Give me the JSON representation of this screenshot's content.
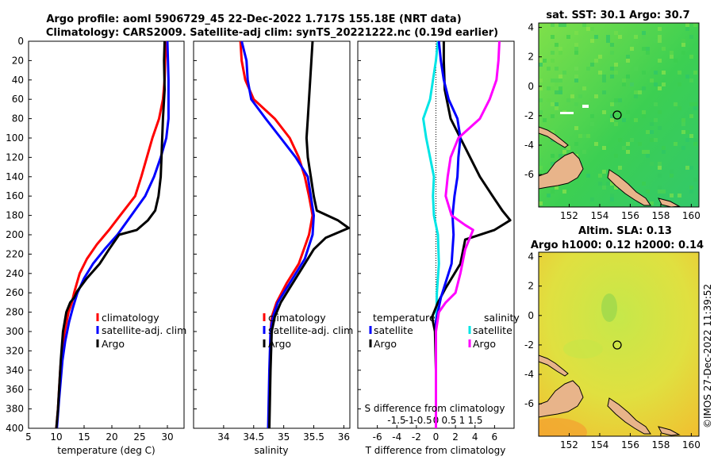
{
  "title": {
    "line1": "Argo profile: aoml 5906729_45 22-Dec-2022 1.717S 155.18E (NRT data)",
    "line2": "Climatology: CARS2009. Satellite-adj clim: synTS_20221222.nc (0.19d earlier)"
  },
  "credit": "©IMOS 27-Dec-2022 11:39:52",
  "colors": {
    "clim": "#ff0000",
    "sat": "#0000ff",
    "argo": "#000000",
    "tsat": "#00e5e5",
    "sargo": "#ff00ff",
    "coast": "#000000",
    "land": "#e8b48a"
  },
  "chart_data": [
    {
      "type": "line",
      "name": "temperature",
      "xlabel": "temperature (deg C)",
      "xlim": [
        5,
        33
      ],
      "ylim": [
        0,
        400
      ],
      "xticks": [
        "5",
        "10",
        "15",
        "20",
        "25",
        "30"
      ],
      "xtick_values": [
        5,
        10,
        15,
        20,
        25,
        30
      ],
      "yticks": [
        "0",
        "20",
        "40",
        "60",
        "80",
        "100",
        "120",
        "140",
        "160",
        "180",
        "200",
        "220",
        "240",
        "260",
        "280",
        "300",
        "320",
        "340",
        "360",
        "380",
        "400"
      ],
      "ytick_values": [
        0,
        20,
        40,
        60,
        80,
        100,
        120,
        140,
        160,
        180,
        200,
        220,
        240,
        260,
        280,
        300,
        320,
        340,
        360,
        380,
        400
      ],
      "legend": [
        "climatology",
        "satellite-adj. clim",
        "Argo"
      ],
      "series": [
        {
          "name": "climatology",
          "color_key": "clim",
          "points": [
            [
              29.8,
              0
            ],
            [
              29.6,
              20
            ],
            [
              29.5,
              40
            ],
            [
              29.2,
              60
            ],
            [
              28.5,
              80
            ],
            [
              27.3,
              100
            ],
            [
              26.3,
              120
            ],
            [
              25.3,
              140
            ],
            [
              24.2,
              160
            ],
            [
              21.5,
              180
            ],
            [
              19.5,
              195
            ],
            [
              17.3,
              210
            ],
            [
              15.5,
              225
            ],
            [
              14.2,
              240
            ],
            [
              13.2,
              260
            ],
            [
              12.8,
              270
            ],
            [
              12.2,
              280
            ],
            [
              11.5,
              300
            ],
            [
              11.0,
              320
            ],
            [
              10.7,
              340
            ],
            [
              10.5,
              360
            ],
            [
              10.3,
              380
            ],
            [
              10.0,
              400
            ]
          ]
        },
        {
          "name": "satellite-adj. clim",
          "color_key": "sat",
          "points": [
            [
              30.0,
              0
            ],
            [
              30.1,
              20
            ],
            [
              30.2,
              40
            ],
            [
              30.2,
              60
            ],
            [
              30.2,
              80
            ],
            [
              29.8,
              100
            ],
            [
              28.8,
              120
            ],
            [
              27.6,
              140
            ],
            [
              26.0,
              160
            ],
            [
              23.5,
              180
            ],
            [
              21.0,
              200
            ],
            [
              18.7,
              215
            ],
            [
              16.6,
              230
            ],
            [
              15.0,
              245
            ],
            [
              13.8,
              260
            ],
            [
              13.0,
              275
            ],
            [
              12.3,
              290
            ],
            [
              11.6,
              310
            ],
            [
              11.1,
              330
            ],
            [
              10.8,
              350
            ],
            [
              10.5,
              370
            ],
            [
              10.3,
              385
            ],
            [
              10.1,
              400
            ]
          ]
        },
        {
          "name": "Argo",
          "color_key": "argo",
          "points": [
            [
              29.5,
              0
            ],
            [
              29.4,
              20
            ],
            [
              29.5,
              50
            ],
            [
              29.2,
              80
            ],
            [
              29.0,
              110
            ],
            [
              28.8,
              140
            ],
            [
              28.4,
              160
            ],
            [
              27.8,
              175
            ],
            [
              26.5,
              185
            ],
            [
              24.5,
              195
            ],
            [
              21.3,
              200
            ],
            [
              19.5,
              215
            ],
            [
              17.8,
              230
            ],
            [
              15.5,
              245
            ],
            [
              13.8,
              258
            ],
            [
              13.2,
              265
            ],
            [
              12.5,
              270
            ],
            [
              11.8,
              280
            ],
            [
              11.2,
              300
            ],
            [
              10.8,
              330
            ],
            [
              10.5,
              360
            ],
            [
              10.3,
              380
            ],
            [
              10.0,
              400
            ]
          ]
        }
      ]
    },
    {
      "type": "line",
      "name": "salinity",
      "xlabel": "salinity",
      "xlim": [
        33.5,
        36.1
      ],
      "ylim": [
        0,
        400
      ],
      "xticks": [
        "34",
        "34.5",
        "35",
        "35.5",
        "36"
      ],
      "xtick_values": [
        34,
        34.5,
        35,
        35.5,
        36
      ],
      "legend": [
        "climatology",
        "satellite-adj. clim",
        "Argo"
      ],
      "series": [
        {
          "name": "climatology",
          "color_key": "clim",
          "points": [
            [
              34.28,
              0
            ],
            [
              34.3,
              20
            ],
            [
              34.36,
              40
            ],
            [
              34.5,
              60
            ],
            [
              34.85,
              80
            ],
            [
              35.1,
              100
            ],
            [
              35.25,
              120
            ],
            [
              35.35,
              140
            ],
            [
              35.42,
              160
            ],
            [
              35.48,
              180
            ],
            [
              35.42,
              200
            ],
            [
              35.25,
              230
            ],
            [
              35.05,
              250
            ],
            [
              34.88,
              270
            ],
            [
              34.8,
              285
            ],
            [
              34.78,
              300
            ],
            [
              34.77,
              340
            ],
            [
              34.75,
              400
            ]
          ]
        },
        {
          "name": "satellite-adj. clim",
          "color_key": "sat",
          "points": [
            [
              34.3,
              0
            ],
            [
              34.38,
              20
            ],
            [
              34.4,
              40
            ],
            [
              34.46,
              60
            ],
            [
              34.7,
              80
            ],
            [
              34.95,
              100
            ],
            [
              35.2,
              120
            ],
            [
              35.4,
              140
            ],
            [
              35.45,
              160
            ],
            [
              35.5,
              180
            ],
            [
              35.48,
              200
            ],
            [
              35.35,
              225
            ],
            [
              35.1,
              250
            ],
            [
              34.9,
              270
            ],
            [
              34.82,
              285
            ],
            [
              34.78,
              300
            ],
            [
              34.76,
              340
            ],
            [
              34.74,
              400
            ]
          ]
        },
        {
          "name": "Argo",
          "color_key": "argo",
          "points": [
            [
              35.48,
              0
            ],
            [
              35.46,
              20
            ],
            [
              35.44,
              40
            ],
            [
              35.42,
              60
            ],
            [
              35.4,
              80
            ],
            [
              35.38,
              100
            ],
            [
              35.4,
              120
            ],
            [
              35.45,
              140
            ],
            [
              35.5,
              160
            ],
            [
              35.55,
              175
            ],
            [
              35.9,
              185
            ],
            [
              36.08,
              193
            ],
            [
              35.7,
              203
            ],
            [
              35.5,
              215
            ],
            [
              35.3,
              235
            ],
            [
              35.1,
              255
            ],
            [
              34.95,
              270
            ],
            [
              34.85,
              285
            ],
            [
              34.8,
              300
            ],
            [
              34.78,
              340
            ],
            [
              34.76,
              400
            ]
          ]
        }
      ]
    },
    {
      "type": "line",
      "name": "differences",
      "xlabel": "T difference from climatology",
      "xlabel_top": "S difference from climatology",
      "xlim": [
        -8,
        8
      ],
      "ylim": [
        0,
        400
      ],
      "xticks": [
        "-6",
        "-4",
        "-2",
        "0",
        "2",
        "4",
        "6"
      ],
      "xtick_values": [
        -6,
        -4,
        -2,
        0,
        2,
        4,
        6
      ],
      "s_xticks": [
        "-1.5",
        "-1",
        "-0.5",
        "0",
        "0.5",
        "1",
        "1.5"
      ],
      "s_xtick_values": [
        -1.5,
        -1,
        -0.5,
        0,
        0.5,
        1,
        1.5
      ],
      "legend_temperature": {
        "title": "temperature",
        "items": [
          "satellite",
          "Argo"
        ]
      },
      "legend_salinity": {
        "title": "salinity",
        "items": [
          "satellite",
          "Argo"
        ]
      },
      "series": [
        {
          "name": "T satellite",
          "color_key": "tsat",
          "points": [
            [
              0.2,
              0
            ],
            [
              0.0,
              20
            ],
            [
              -0.3,
              40
            ],
            [
              -0.6,
              60
            ],
            [
              -1.3,
              80
            ],
            [
              -1.0,
              100
            ],
            [
              -0.6,
              120
            ],
            [
              -0.2,
              140
            ],
            [
              -0.3,
              160
            ],
            [
              -0.2,
              180
            ],
            [
              0.2,
              200
            ],
            [
              0.3,
              230
            ],
            [
              0.1,
              260
            ],
            [
              0,
              300
            ],
            [
              0,
              400
            ]
          ]
        },
        {
          "name": "T Argo",
          "color_key": "argo",
          "points": [
            [
              0.8,
              0
            ],
            [
              0.8,
              20
            ],
            [
              0.9,
              50
            ],
            [
              1.5,
              80
            ],
            [
              2.5,
              100
            ],
            [
              3.5,
              120
            ],
            [
              4.5,
              140
            ],
            [
              5.8,
              160
            ],
            [
              6.8,
              175
            ],
            [
              7.6,
              185
            ],
            [
              6.0,
              195
            ],
            [
              3.0,
              205
            ],
            [
              2.5,
              230
            ],
            [
              1.0,
              255
            ],
            [
              0.2,
              270
            ],
            [
              -0.4,
              285
            ],
            [
              -0.1,
              300
            ],
            [
              0,
              340
            ],
            [
              0,
              400
            ]
          ]
        },
        {
          "name": "T sat-adj clim",
          "color_key": "sat",
          "points": [
            [
              0.3,
              0
            ],
            [
              0.5,
              20
            ],
            [
              0.8,
              40
            ],
            [
              1.3,
              60
            ],
            [
              2.2,
              80
            ],
            [
              2.5,
              100
            ],
            [
              2.3,
              120
            ],
            [
              2.2,
              140
            ],
            [
              1.9,
              160
            ],
            [
              1.7,
              180
            ],
            [
              1.8,
              200
            ],
            [
              1.6,
              230
            ],
            [
              0.5,
              265
            ],
            [
              0,
              290
            ],
            [
              0,
              400
            ]
          ]
        },
        {
          "name": "S Argo",
          "color_key": "sargo",
          "points": [
            [
              6.5,
              0
            ],
            [
              6.4,
              20
            ],
            [
              6.2,
              40
            ],
            [
              5.5,
              60
            ],
            [
              4.5,
              80
            ],
            [
              2.3,
              100
            ],
            [
              1.5,
              120
            ],
            [
              1.2,
              140
            ],
            [
              1.0,
              160
            ],
            [
              1.6,
              180
            ],
            [
              3.0,
              190
            ],
            [
              3.8,
              195
            ],
            [
              3.0,
              215
            ],
            [
              2.5,
              240
            ],
            [
              2.0,
              260
            ],
            [
              1.0,
              270
            ],
            [
              0.3,
              280
            ],
            [
              0,
              300
            ],
            [
              0,
              400
            ]
          ]
        }
      ]
    },
    {
      "type": "heatmap",
      "name": "sst-map",
      "title": "sat. SST: 30.1 Argo: 30.7",
      "xlim": [
        150,
        160.5
      ],
      "ylim": [
        -8.2,
        4.3
      ],
      "xticks": [
        "152",
        "154",
        "156",
        "158",
        "160"
      ],
      "xtick_values": [
        152,
        154,
        156,
        158,
        160
      ],
      "yticks": [
        "4",
        "2",
        "0",
        "-2",
        "-4",
        "-6"
      ],
      "ytick_values": [
        4,
        2,
        0,
        -2,
        -4,
        -6
      ],
      "marker": [
        155.18,
        -1.717
      ]
    },
    {
      "type": "heatmap",
      "name": "sla-map",
      "title_line1": "Altim. SLA: 0.13",
      "title_line2": "Argo h1000: 0.12 h2000: 0.14",
      "xlim": [
        150,
        160.5
      ],
      "ylim": [
        -8.2,
        4.3
      ],
      "xticks": [
        "152",
        "154",
        "156",
        "158",
        "160"
      ],
      "xtick_values": [
        152,
        154,
        156,
        158,
        160
      ],
      "yticks": [
        "4",
        "2",
        "0",
        "-2",
        "-4",
        "-6"
      ],
      "ytick_values": [
        4,
        2,
        0,
        -2,
        -4,
        -6
      ],
      "marker": [
        155.18,
        -1.717
      ]
    }
  ]
}
